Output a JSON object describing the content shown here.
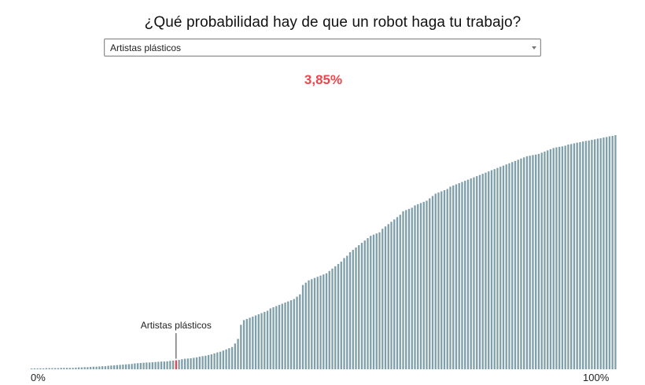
{
  "title": "¿Qué probabilidad hay de que un robot haga tu trabajo?",
  "selector": {
    "selected": "Artistas plásticos"
  },
  "result": {
    "percent_text": "3,85%"
  },
  "colors": {
    "bar": "#7f9faa",
    "highlight": "#f0444c",
    "accent_text": "#f0444c"
  },
  "chart_data": {
    "type": "bar",
    "title": "¿Qué probabilidad hay de que un robot haga tu trabajo?",
    "x_axis": {
      "min_label": "0%",
      "max_label": "100%"
    },
    "ylim": [
      0,
      1
    ],
    "grid": false,
    "legend": "none",
    "highlight": {
      "label": "Artistas plásticos",
      "value": 0.0385,
      "percent_text": "3,85%"
    },
    "values": [
      0.003,
      0.004,
      0.004,
      0.004,
      0.004,
      0.005,
      0.005,
      0.005,
      0.005,
      0.005,
      0.006,
      0.006,
      0.006,
      0.006,
      0.006,
      0.007,
      0.008,
      0.008,
      0.009,
      0.009,
      0.01,
      0.011,
      0.011,
      0.012,
      0.013,
      0.013,
      0.015,
      0.016,
      0.017,
      0.018,
      0.019,
      0.02,
      0.021,
      0.022,
      0.023,
      0.025,
      0.026,
      0.027,
      0.028,
      0.029,
      0.029,
      0.03,
      0.031,
      0.032,
      0.033,
      0.033,
      0.034,
      0.036,
      0.037,
      0.0385,
      0.04,
      0.043,
      0.045,
      0.046,
      0.047,
      0.049,
      0.051,
      0.054,
      0.056,
      0.058,
      0.061,
      0.064,
      0.068,
      0.072,
      0.075,
      0.08,
      0.085,
      0.09,
      0.095,
      0.11,
      0.13,
      0.19,
      0.21,
      0.215,
      0.22,
      0.225,
      0.23,
      0.235,
      0.24,
      0.245,
      0.25,
      0.26,
      0.265,
      0.27,
      0.275,
      0.28,
      0.285,
      0.29,
      0.295,
      0.3,
      0.31,
      0.32,
      0.36,
      0.37,
      0.38,
      0.385,
      0.39,
      0.395,
      0.4,
      0.405,
      0.41,
      0.42,
      0.43,
      0.44,
      0.45,
      0.46,
      0.475,
      0.485,
      0.5,
      0.51,
      0.52,
      0.53,
      0.54,
      0.55,
      0.56,
      0.57,
      0.575,
      0.58,
      0.585,
      0.6,
      0.61,
      0.62,
      0.63,
      0.64,
      0.65,
      0.66,
      0.675,
      0.68,
      0.685,
      0.69,
      0.7,
      0.705,
      0.71,
      0.715,
      0.72,
      0.73,
      0.74,
      0.75,
      0.755,
      0.76,
      0.765,
      0.77,
      0.78,
      0.785,
      0.79,
      0.795,
      0.8,
      0.805,
      0.81,
      0.815,
      0.82,
      0.825,
      0.83,
      0.835,
      0.84,
      0.845,
      0.85,
      0.855,
      0.86,
      0.865,
      0.87,
      0.875,
      0.88,
      0.885,
      0.89,
      0.895,
      0.9,
      0.905,
      0.91,
      0.912,
      0.915,
      0.917,
      0.92,
      0.925,
      0.93,
      0.935,
      0.94,
      0.945,
      0.948,
      0.95,
      0.952,
      0.955,
      0.96,
      0.962,
      0.965,
      0.968,
      0.97,
      0.973,
      0.975,
      0.977,
      0.98,
      0.982,
      0.985,
      0.987,
      0.99,
      0.992,
      0.995,
      0.997,
      1.0
    ]
  }
}
